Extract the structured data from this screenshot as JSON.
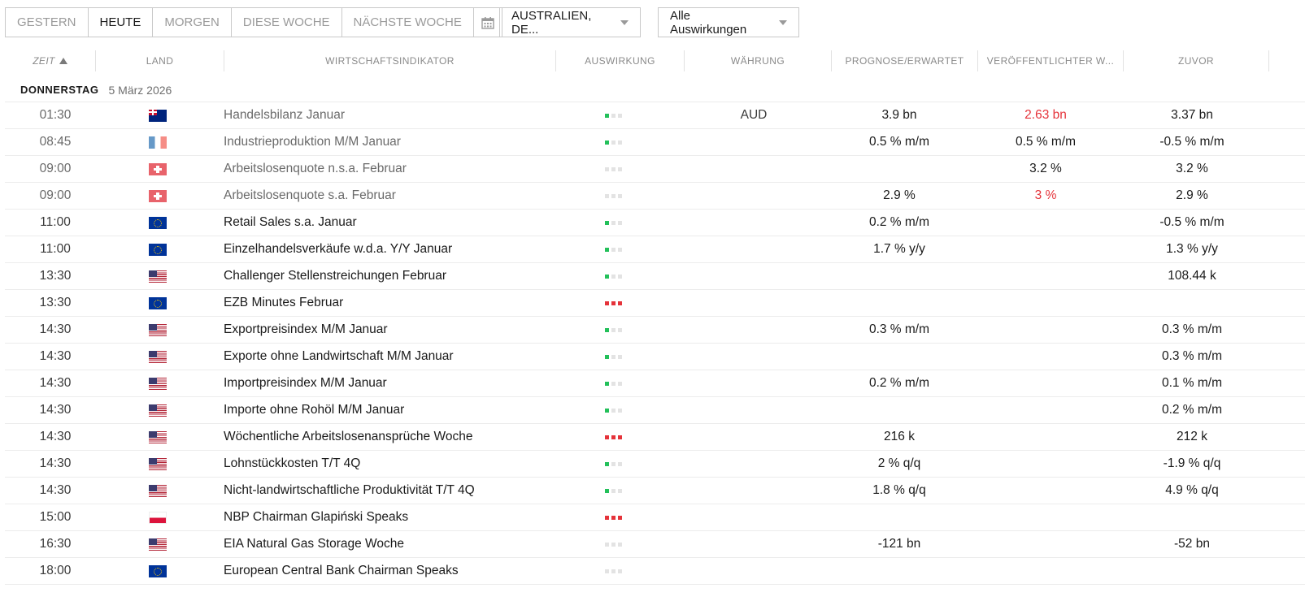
{
  "toolbar": {
    "ranges": [
      {
        "label": "GESTERN",
        "active": false
      },
      {
        "label": "HEUTE",
        "active": true
      },
      {
        "label": "MORGEN",
        "active": false
      },
      {
        "label": "DIESE WOCHE",
        "active": false
      },
      {
        "label": "NÄCHSTE WOCHE",
        "active": false
      }
    ],
    "calendar_icon": "calendar-icon",
    "country_filter": "AUSTRALIEN, DE...",
    "impact_filter": "Alle Auswirkungen"
  },
  "columns": {
    "time": "ZEIT",
    "country": "LAND",
    "indicator": "WIRTSCHAFTSINDIKATOR",
    "impact": "AUSWIRKUNG",
    "currency": "WÄHRUNG",
    "forecast": "PROGNOSE/ERWARTET",
    "actual": "VERÖFFENTLICHTER W...",
    "previous": "ZUVOR"
  },
  "day": {
    "name": "DONNERSTAG",
    "date": "5 März 2026"
  },
  "colors": {
    "low": "#23c05a",
    "medium": "#f5a623",
    "high": "#e5333a",
    "negative": "#e5333a"
  },
  "events": [
    {
      "time": "01:30",
      "flag": "au",
      "indicator": "Handelsbilanz Januar",
      "impact": "low",
      "currency": "AUD",
      "forecast": "3.9 bn",
      "actual": "2.63 bn",
      "actual_neg": true,
      "previous": "3.37 bn",
      "past": true
    },
    {
      "time": "08:45",
      "flag": "fr",
      "indicator": "Industrieproduktion M/M Januar",
      "impact": "low",
      "currency": "",
      "forecast": "0.5 % m/m",
      "actual": "0.5 % m/m",
      "actual_neg": false,
      "previous": "-0.5 % m/m",
      "past": true
    },
    {
      "time": "09:00",
      "flag": "ch",
      "indicator": "Arbeitslosenquote n.s.a. Februar",
      "impact": "medium",
      "currency": "",
      "forecast": "",
      "actual": "3.2 %",
      "actual_neg": false,
      "previous": "3.2 %",
      "past": true
    },
    {
      "time": "09:00",
      "flag": "ch",
      "indicator": "Arbeitslosenquote s.a. Februar",
      "impact": "medium",
      "currency": "",
      "forecast": "2.9 %",
      "actual": "3 %",
      "actual_neg": true,
      "previous": "2.9 %",
      "past": true
    },
    {
      "time": "11:00",
      "flag": "eu",
      "indicator": "Retail Sales s.a. Januar",
      "impact": "low",
      "currency": "",
      "forecast": "0.2 % m/m",
      "actual": "",
      "actual_neg": false,
      "previous": "-0.5 % m/m",
      "past": false
    },
    {
      "time": "11:00",
      "flag": "eu",
      "indicator": "Einzelhandelsverkäufe w.d.a. Y/Y Januar",
      "impact": "low",
      "currency": "",
      "forecast": "1.7 % y/y",
      "actual": "",
      "actual_neg": false,
      "previous": "1.3 % y/y",
      "past": false
    },
    {
      "time": "13:30",
      "flag": "us",
      "indicator": "Challenger Stellenstreichungen Februar",
      "impact": "low",
      "currency": "",
      "forecast": "",
      "actual": "",
      "actual_neg": false,
      "previous": "108.44 k",
      "past": false
    },
    {
      "time": "13:30",
      "flag": "eu",
      "indicator": "EZB Minutes Februar",
      "impact": "high",
      "currency": "",
      "forecast": "",
      "actual": "",
      "actual_neg": false,
      "previous": "",
      "past": false
    },
    {
      "time": "14:30",
      "flag": "us",
      "indicator": "Exportpreisindex M/M Januar",
      "impact": "low",
      "currency": "",
      "forecast": "0.3 % m/m",
      "actual": "",
      "actual_neg": false,
      "previous": "0.3 % m/m",
      "past": false
    },
    {
      "time": "14:30",
      "flag": "us",
      "indicator": "Exporte ohne Landwirtschaft M/M Januar",
      "impact": "low",
      "currency": "",
      "forecast": "",
      "actual": "",
      "actual_neg": false,
      "previous": "0.3 % m/m",
      "past": false
    },
    {
      "time": "14:30",
      "flag": "us",
      "indicator": "Importpreisindex M/M Januar",
      "impact": "low",
      "currency": "",
      "forecast": "0.2 % m/m",
      "actual": "",
      "actual_neg": false,
      "previous": "0.1 % m/m",
      "past": false
    },
    {
      "time": "14:30",
      "flag": "us",
      "indicator": "Importe ohne Rohöl M/M Januar",
      "impact": "low",
      "currency": "",
      "forecast": "",
      "actual": "",
      "actual_neg": false,
      "previous": "0.2 % m/m",
      "past": false
    },
    {
      "time": "14:30",
      "flag": "us",
      "indicator": "Wöchentliche Arbeitslosenansprüche Woche",
      "impact": "high",
      "currency": "",
      "forecast": "216 k",
      "actual": "",
      "actual_neg": false,
      "previous": "212 k",
      "past": false
    },
    {
      "time": "14:30",
      "flag": "us",
      "indicator": "Lohnstückkosten T/T 4Q",
      "impact": "low",
      "currency": "",
      "forecast": "2 % q/q",
      "actual": "",
      "actual_neg": false,
      "previous": "-1.9 % q/q",
      "past": false
    },
    {
      "time": "14:30",
      "flag": "us",
      "indicator": "Nicht-landwirtschaftliche Produktivität T/T 4Q",
      "impact": "low",
      "currency": "",
      "forecast": "1.8 % q/q",
      "actual": "",
      "actual_neg": false,
      "previous": "4.9 % q/q",
      "past": false
    },
    {
      "time": "15:00",
      "flag": "pl",
      "indicator": "NBP Chairman Glapiński Speaks",
      "impact": "high",
      "currency": "",
      "forecast": "",
      "actual": "",
      "actual_neg": false,
      "previous": "",
      "past": false
    },
    {
      "time": "16:30",
      "flag": "us",
      "indicator": "EIA Natural Gas Storage Woche",
      "impact": "medium",
      "currency": "",
      "forecast": "-121 bn",
      "actual": "",
      "actual_neg": false,
      "previous": "-52 bn",
      "past": false
    },
    {
      "time": "18:00",
      "flag": "eu",
      "indicator": "European Central Bank Chairman Speaks",
      "impact": "medium",
      "currency": "",
      "forecast": "",
      "actual": "",
      "actual_neg": false,
      "previous": "",
      "past": false
    }
  ]
}
